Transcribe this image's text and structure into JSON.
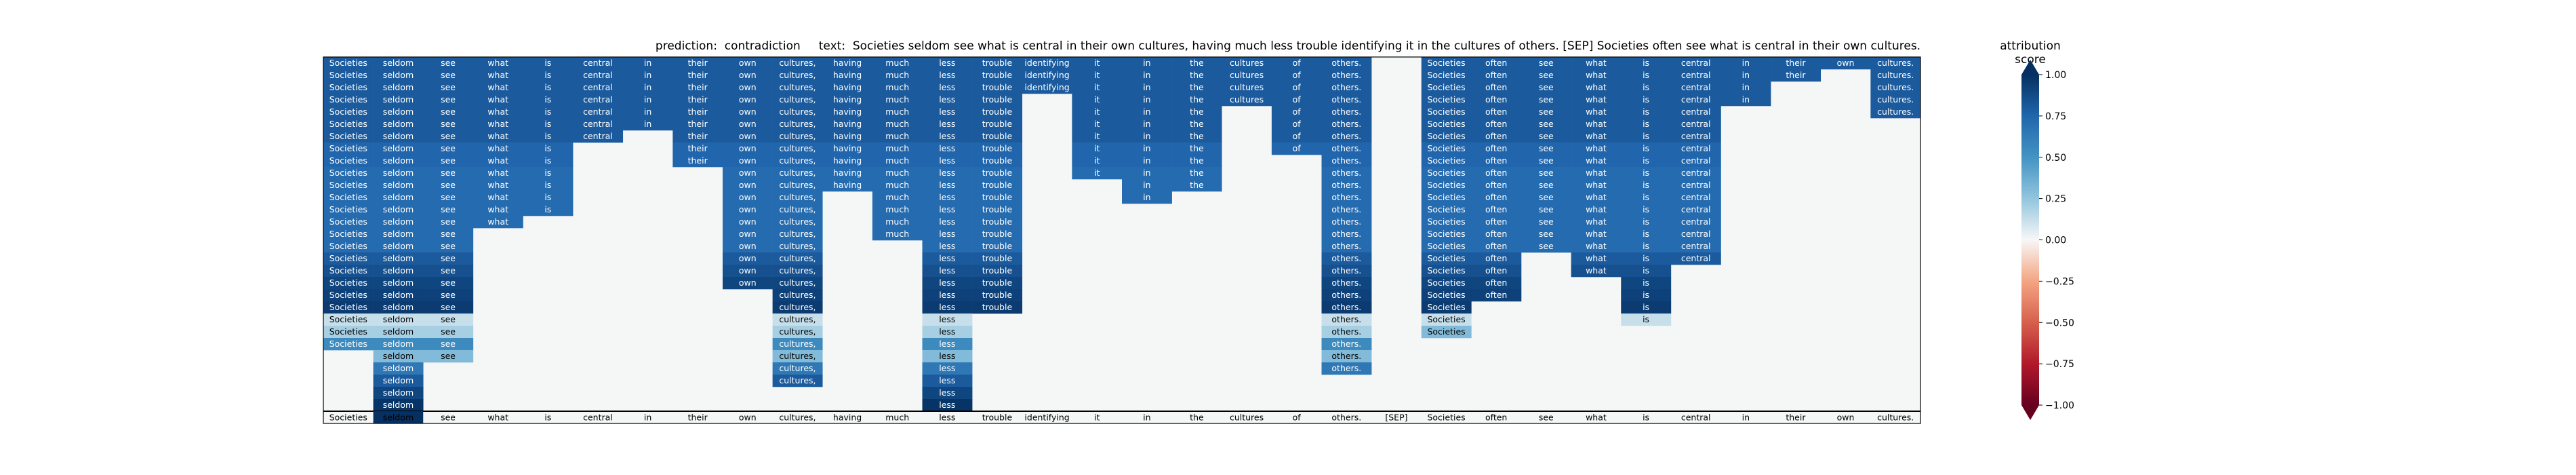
{
  "figure": {
    "prediction_label": "prediction:",
    "prediction": "contradiction",
    "text_label": "text:",
    "text": "Societies seldom see what is central in their own cultures, having much less trouble identifying it in the cultures of others. [SEP] Societies often see what is central in their own cultures."
  },
  "colorbar": {
    "title": "attribution score",
    "ticks": [
      1.0,
      0.75,
      0.5,
      0.25,
      0.0,
      -0.25,
      -0.5,
      -0.75,
      -1.0
    ],
    "tick_labels": [
      "1.00",
      "0.75",
      "0.50",
      "0.25",
      "0.00",
      "−0.25",
      "−0.50",
      "−0.75",
      "−1.00"
    ],
    "colormap": "RdBu",
    "extend": "both"
  },
  "chart_data": {
    "type": "heatmap",
    "title": "prediction:  contradiction     text:  Societies seldom see what is central in their own cultures, having much less trouble identifying it in the cultures of others. [SEP] Societies often see what is central in their own cultures.",
    "tokens": [
      "Societies",
      "seldom",
      "see",
      "what",
      "is",
      "central",
      "in",
      "their",
      "own",
      "cultures,",
      "having",
      "much",
      "less",
      "trouble",
      "identifying",
      "it",
      "in",
      "the",
      "cultures",
      "of",
      "others.",
      "[SEP]",
      "Societies",
      "often",
      "see",
      "what",
      "is",
      "central",
      "in",
      "their",
      "own",
      "cultures."
    ],
    "value_range": [
      -1.0,
      1.0
    ],
    "grid": false,
    "rows": [
      {
        "Societies": 0.8,
        "seldom": 0.8,
        "see": 0.8,
        "what": 0.8,
        "is": 0.8,
        "central": 0.8,
        "in": 0.8,
        "their": 0.8,
        "own": 0.8,
        "cultures,": 0.8,
        "having": 0.8,
        "much": 0.8,
        "less": 0.8,
        "trouble": 0.8,
        "identifying": 0.8,
        "it": 0.8,
        "in#16": 0.8,
        "the": 0.8,
        "cultures": 0.8,
        "of": 0.8,
        "others.": 0.8,
        "Societies#22": 0.8,
        "often": 0.8,
        "see#24": 0.8,
        "what#25": 0.8,
        "is#26": 0.8,
        "central#27": 0.8,
        "in#28": 0.8,
        "their#29": 0.8,
        "own#30": 0.8,
        "cultures.": 0.8
      },
      {
        "Societies": 0.8,
        "seldom": 0.8,
        "see": 0.8,
        "what": 0.8,
        "is": 0.8,
        "central": 0.8,
        "in": 0.8,
        "their": 0.8,
        "own": 0.8,
        "cultures,": 0.8,
        "having": 0.8,
        "much": 0.8,
        "less": 0.8,
        "trouble": 0.8,
        "identifying": 0.8,
        "it": 0.8,
        "in#16": 0.8,
        "the": 0.8,
        "cultures": 0.8,
        "of": 0.8,
        "others.": 0.8,
        "Societies#22": 0.8,
        "often": 0.8,
        "see#24": 0.8,
        "what#25": 0.8,
        "is#26": 0.8,
        "central#27": 0.8,
        "in#28": 0.8,
        "their#29": 0.8,
        "cultures.": 0.8
      },
      {
        "Societies": 0.8,
        "seldom": 0.8,
        "see": 0.8,
        "what": 0.8,
        "is": 0.8,
        "central": 0.8,
        "in": 0.8,
        "their": 0.8,
        "own": 0.8,
        "cultures,": 0.8,
        "having": 0.8,
        "much": 0.8,
        "less": 0.8,
        "trouble": 0.8,
        "identifying": 0.8,
        "it": 0.8,
        "in#16": 0.8,
        "the": 0.8,
        "cultures": 0.8,
        "of": 0.8,
        "others.": 0.8,
        "Societies#22": 0.8,
        "often": 0.8,
        "see#24": 0.8,
        "what#25": 0.8,
        "is#26": 0.8,
        "central#27": 0.8,
        "in#28": 0.8,
        "cultures.": 0.8
      },
      {
        "Societies": 0.8,
        "seldom": 0.8,
        "see": 0.8,
        "what": 0.8,
        "is": 0.8,
        "central": 0.8,
        "in": 0.8,
        "their": 0.8,
        "own": 0.8,
        "cultures,": 0.8,
        "having": 0.8,
        "much": 0.8,
        "less": 0.8,
        "trouble": 0.8,
        "it": 0.8,
        "in#16": 0.8,
        "the": 0.8,
        "cultures": 0.8,
        "of": 0.8,
        "others.": 0.8,
        "Societies#22": 0.8,
        "often": 0.8,
        "see#24": 0.8,
        "what#25": 0.8,
        "is#26": 0.8,
        "central#27": 0.8,
        "in#28": 0.8,
        "cultures.": 0.8
      },
      {
        "Societies": 0.8,
        "seldom": 0.8,
        "see": 0.8,
        "what": 0.8,
        "is": 0.8,
        "central": 0.8,
        "in": 0.8,
        "their": 0.8,
        "own": 0.8,
        "cultures,": 0.8,
        "having": 0.8,
        "much": 0.8,
        "less": 0.8,
        "trouble": 0.8,
        "it": 0.8,
        "in#16": 0.8,
        "the": 0.8,
        "of": 0.8,
        "others.": 0.8,
        "Societies#22": 0.8,
        "often": 0.8,
        "see#24": 0.8,
        "what#25": 0.8,
        "is#26": 0.8,
        "central#27": 0.8,
        "cultures.": 0.8
      },
      {
        "Societies": 0.8,
        "seldom": 0.8,
        "see": 0.8,
        "what": 0.8,
        "is": 0.8,
        "central": 0.8,
        "in": 0.8,
        "their": 0.8,
        "own": 0.8,
        "cultures,": 0.8,
        "having": 0.8,
        "much": 0.8,
        "less": 0.8,
        "trouble": 0.8,
        "it": 0.8,
        "in#16": 0.8,
        "the": 0.8,
        "of": 0.8,
        "others.": 0.8,
        "Societies#22": 0.8,
        "often": 0.8,
        "see#24": 0.8,
        "what#25": 0.8,
        "is#26": 0.8,
        "central#27": 0.8
      },
      {
        "Societies": 0.8,
        "seldom": 0.8,
        "see": 0.8,
        "what": 0.8,
        "is": 0.8,
        "central": 0.8,
        "their": 0.8,
        "own": 0.8,
        "cultures,": 0.8,
        "having": 0.8,
        "much": 0.8,
        "less": 0.8,
        "trouble": 0.8,
        "it": 0.8,
        "in#16": 0.8,
        "the": 0.8,
        "of": 0.8,
        "others.": 0.8,
        "Societies#22": 0.8,
        "often": 0.8,
        "see#24": 0.8,
        "what#25": 0.8,
        "is#26": 0.8,
        "central#27": 0.8
      },
      {
        "Societies": 0.75,
        "seldom": 0.75,
        "see": 0.75,
        "what": 0.75,
        "is": 0.75,
        "their": 0.75,
        "own": 0.75,
        "cultures,": 0.75,
        "having": 0.75,
        "much": 0.75,
        "less": 0.75,
        "trouble": 0.75,
        "it": 0.75,
        "in#16": 0.75,
        "the": 0.75,
        "of": 0.75,
        "others.": 0.75,
        "Societies#22": 0.75,
        "often": 0.75,
        "see#24": 0.75,
        "what#25": 0.75,
        "is#26": 0.75,
        "central#27": 0.75
      },
      {
        "Societies": 0.75,
        "seldom": 0.75,
        "see": 0.75,
        "what": 0.75,
        "is": 0.75,
        "their": 0.75,
        "own": 0.75,
        "cultures,": 0.75,
        "having": 0.75,
        "much": 0.75,
        "less": 0.75,
        "trouble": 0.75,
        "it": 0.75,
        "in#16": 0.75,
        "the": 0.75,
        "others.": 0.75,
        "Societies#22": 0.75,
        "often": 0.75,
        "see#24": 0.75,
        "what#25": 0.75,
        "is#26": 0.75,
        "central#27": 0.75
      },
      {
        "Societies": 0.72,
        "seldom": 0.72,
        "see": 0.72,
        "what": 0.72,
        "is": 0.72,
        "own": 0.72,
        "cultures,": 0.72,
        "having": 0.72,
        "much": 0.72,
        "less": 0.72,
        "trouble": 0.72,
        "it": 0.72,
        "in#16": 0.72,
        "the": 0.72,
        "others.": 0.72,
        "Societies#22": 0.72,
        "often": 0.72,
        "see#24": 0.72,
        "what#25": 0.72,
        "is#26": 0.72,
        "central#27": 0.72
      },
      {
        "Societies": 0.72,
        "seldom": 0.72,
        "see": 0.72,
        "what": 0.72,
        "is": 0.72,
        "own": 0.72,
        "cultures,": 0.72,
        "having": 0.72,
        "much": 0.72,
        "less": 0.72,
        "trouble": 0.72,
        "in#16": 0.72,
        "the": 0.72,
        "others.": 0.72,
        "Societies#22": 0.72,
        "often": 0.72,
        "see#24": 0.72,
        "what#25": 0.72,
        "is#26": 0.72,
        "central#27": 0.72
      },
      {
        "Societies": 0.72,
        "seldom": 0.72,
        "see": 0.72,
        "what": 0.72,
        "is": 0.72,
        "own": 0.72,
        "cultures,": 0.72,
        "much": 0.72,
        "less": 0.72,
        "trouble": 0.72,
        "in#16": 0.72,
        "others.": 0.72,
        "Societies#22": 0.72,
        "often": 0.72,
        "see#24": 0.72,
        "what#25": 0.72,
        "is#26": 0.72,
        "central#27": 0.72
      },
      {
        "Societies": 0.72,
        "seldom": 0.72,
        "see": 0.72,
        "what": 0.72,
        "is": 0.72,
        "own": 0.72,
        "cultures,": 0.72,
        "much": 0.72,
        "less": 0.72,
        "trouble": 0.72,
        "others.": 0.72,
        "Societies#22": 0.72,
        "often": 0.72,
        "see#24": 0.72,
        "what#25": 0.72,
        "is#26": 0.72,
        "central#27": 0.72
      },
      {
        "Societies": 0.72,
        "seldom": 0.72,
        "see": 0.72,
        "what": 0.72,
        "own": 0.72,
        "cultures,": 0.72,
        "much": 0.72,
        "less": 0.72,
        "trouble": 0.72,
        "others.": 0.72,
        "Societies#22": 0.72,
        "often": 0.72,
        "see#24": 0.72,
        "what#25": 0.72,
        "is#26": 0.72,
        "central#27": 0.72
      },
      {
        "Societies": 0.72,
        "seldom": 0.72,
        "see": 0.72,
        "own": 0.72,
        "cultures,": 0.72,
        "much": 0.72,
        "less": 0.72,
        "trouble": 0.72,
        "others.": 0.72,
        "Societies#22": 0.72,
        "often": 0.72,
        "see#24": 0.72,
        "what#25": 0.72,
        "is#26": 0.72,
        "central#27": 0.72
      },
      {
        "Societies": 0.72,
        "seldom": 0.72,
        "see": 0.72,
        "own": 0.72,
        "cultures,": 0.72,
        "less": 0.72,
        "trouble": 0.72,
        "others.": 0.72,
        "Societies#22": 0.72,
        "often": 0.72,
        "see#24": 0.72,
        "what#25": 0.72,
        "is#26": 0.72,
        "central#27": 0.72
      },
      {
        "Societies": 0.8,
        "seldom": 0.8,
        "see": 0.8,
        "own": 0.8,
        "cultures,": 0.8,
        "less": 0.8,
        "trouble": 0.8,
        "others.": 0.8,
        "Societies#22": 0.8,
        "often": 0.8,
        "what#25": 0.8,
        "is#26": 0.8,
        "central#27": 0.8
      },
      {
        "Societies": 0.85,
        "seldom": 0.85,
        "see": 0.85,
        "own": 0.85,
        "cultures,": 0.85,
        "less": 0.85,
        "trouble": 0.85,
        "others.": 0.85,
        "Societies#22": 0.85,
        "often": 0.85,
        "what#25": 0.85,
        "is#26": 0.85
      },
      {
        "Societies": 0.9,
        "seldom": 0.9,
        "see": 0.9,
        "own": 0.9,
        "cultures,": 0.9,
        "less": 0.9,
        "trouble": 0.9,
        "others.": 0.9,
        "Societies#22": 0.9,
        "often": 0.9,
        "is#26": 0.9
      },
      {
        "Societies": 0.92,
        "seldom": 0.92,
        "see": 0.92,
        "cultures,": 0.92,
        "less": 0.92,
        "trouble": 0.92,
        "others.": 0.92,
        "Societies#22": 0.92,
        "often": 0.92,
        "is#26": 0.92
      },
      {
        "Societies": 0.95,
        "seldom": 0.95,
        "see": 0.95,
        "cultures,": 0.95,
        "less": 0.95,
        "trouble": 0.95,
        "others.": 0.95,
        "Societies#22": 0.95,
        "is#26": 0.95
      },
      {
        "Societies": 0.12,
        "seldom": 0.12,
        "see": 0.12,
        "cultures,": 0.12,
        "less": 0.12,
        "others.": 0.12,
        "Societies#22": 0.12,
        "is#26": 0.12
      },
      {
        "Societies": 0.2,
        "seldom": 0.2,
        "see": 0.2,
        "cultures,": 0.2,
        "less": 0.2,
        "others.": 0.2,
        "Societies#22": 0.3
      },
      {
        "Societies": 0.55,
        "seldom": 0.55,
        "see": 0.55,
        "cultures,": 0.55,
        "less": 0.55,
        "others.": 0.55
      },
      {
        "seldom": 0.3,
        "see": 0.3,
        "cultures,": 0.3,
        "less": 0.3,
        "others.": 0.3
      },
      {
        "seldom": 0.65,
        "cultures,": 0.65,
        "less": 0.65,
        "others.": 0.65
      },
      {
        "seldom": 0.8,
        "cultures,": 0.8,
        "less": 0.8
      },
      {
        "seldom": 0.9,
        "less": 0.9
      },
      {
        "seldom": 0.98,
        "less": 0.98
      }
    ],
    "bottom_row": {
      "seldom": 1.0
    }
  }
}
